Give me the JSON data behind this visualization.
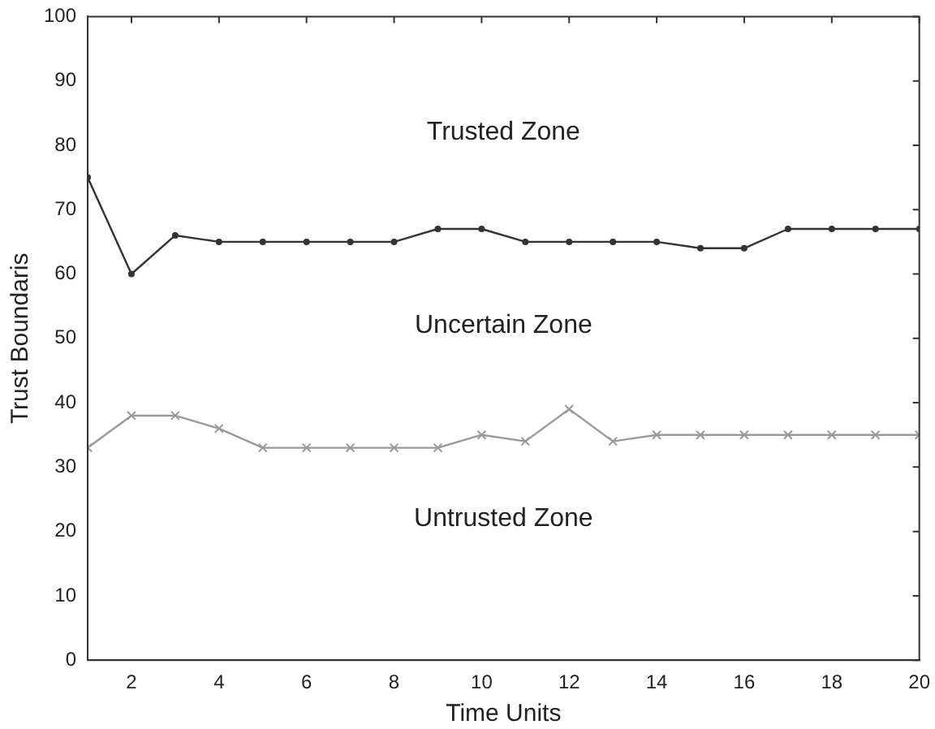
{
  "chart_data": {
    "type": "line",
    "xlabel": "Time Units",
    "ylabel": "Trust Boundaris",
    "x": [
      1,
      2,
      3,
      4,
      5,
      6,
      7,
      8,
      9,
      10,
      11,
      12,
      13,
      14,
      15,
      16,
      17,
      18,
      19,
      20
    ],
    "series": [
      {
        "color": "#333333",
        "marker": "circle",
        "values": [
          75,
          60,
          66,
          65,
          65,
          65,
          65,
          65,
          67,
          67,
          65,
          65,
          65,
          65,
          64,
          64,
          67,
          67,
          67,
          67
        ]
      },
      {
        "color": "#999999",
        "marker": "cross",
        "values": [
          33,
          38,
          38,
          36,
          33,
          33,
          33,
          33,
          33,
          35,
          34,
          39,
          34,
          35,
          35,
          35,
          35,
          35,
          35,
          35
        ]
      }
    ],
    "xlim": [
      1,
      20
    ],
    "xticks": [
      2,
      4,
      6,
      8,
      10,
      12,
      14,
      16,
      18,
      20
    ],
    "ylim": [
      0,
      100
    ],
    "yticks": [
      0,
      10,
      20,
      30,
      40,
      50,
      60,
      70,
      80,
      90,
      100
    ],
    "annotations": [
      "Trusted Zone",
      "Uncertain Zone",
      "Untrusted Zone"
    ],
    "grid": false,
    "legend": false,
    "line_style": "solid"
  }
}
